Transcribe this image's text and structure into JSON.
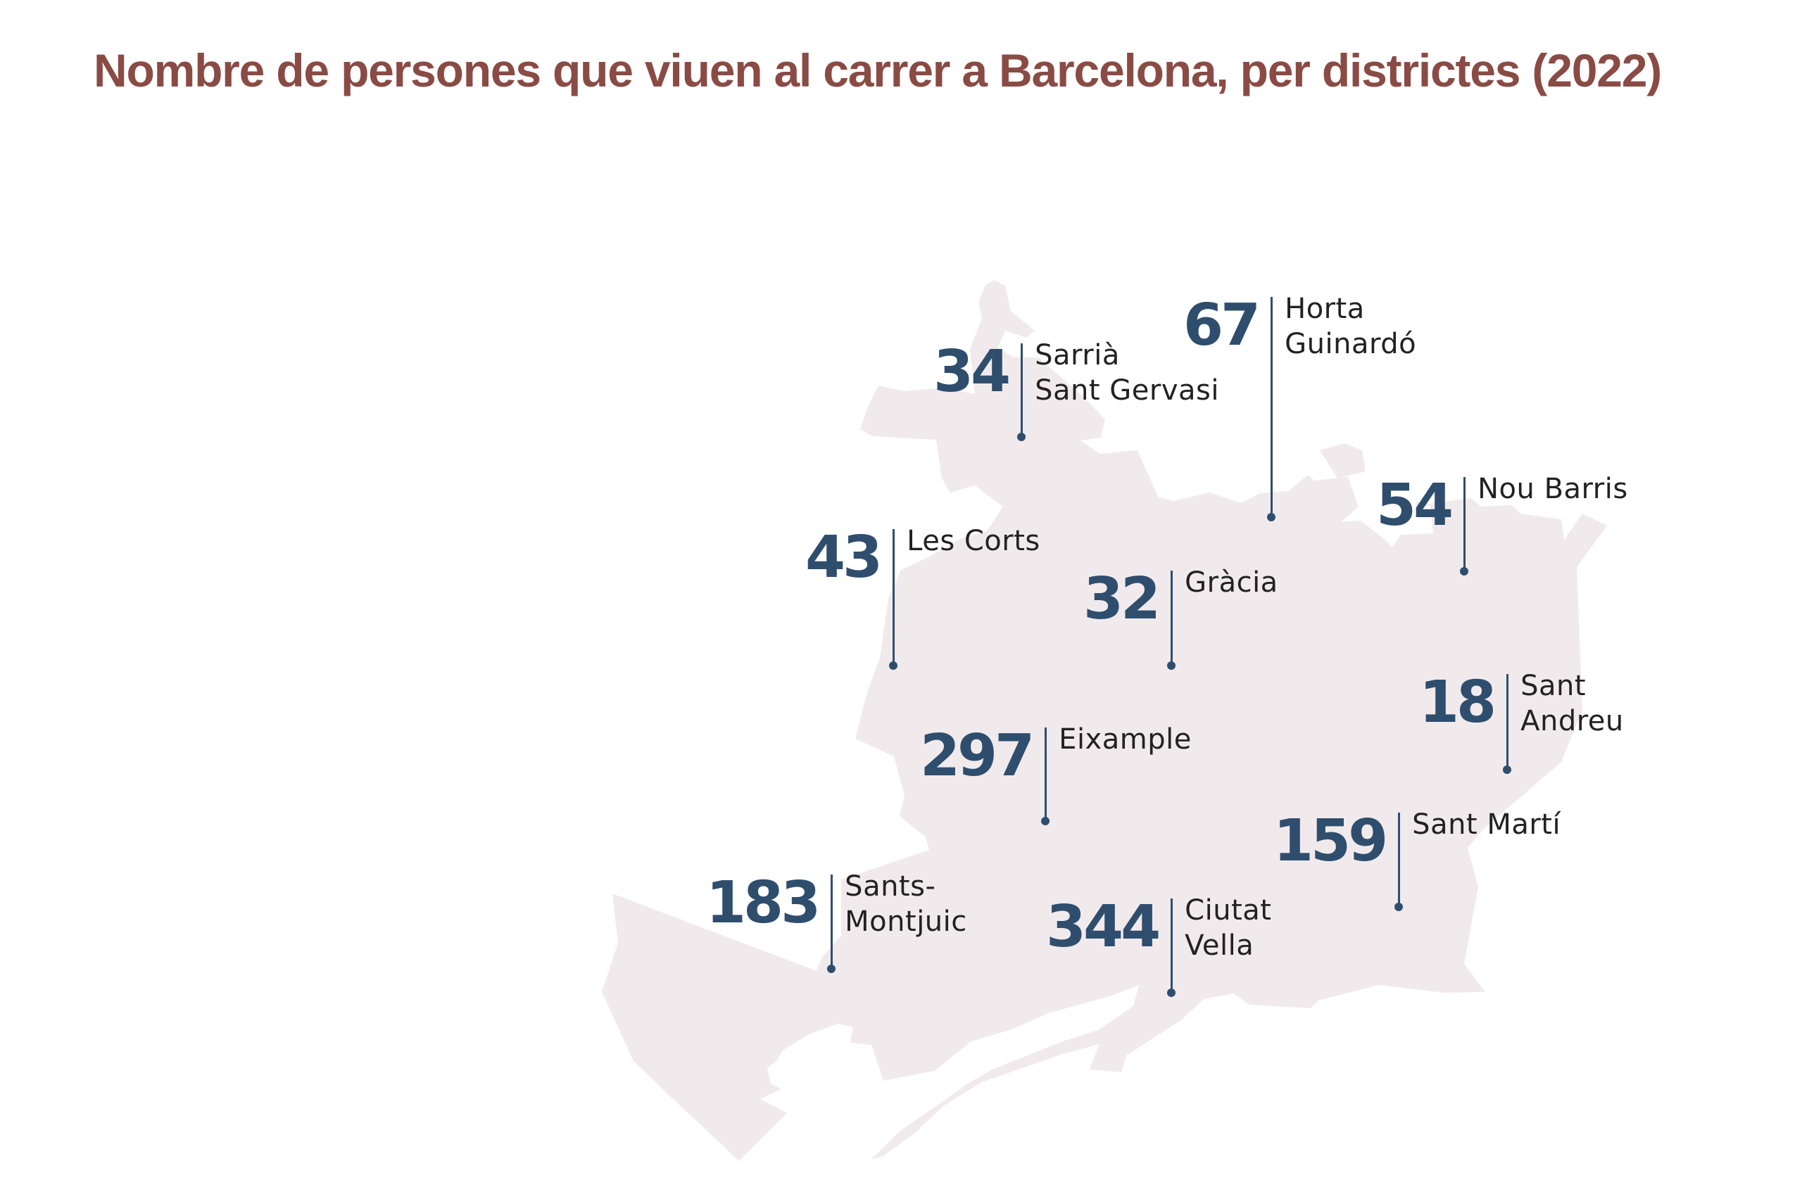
{
  "title": "Nombre de persones que viuen al carrer a Barcelona, per districtes (2022)",
  "colors": {
    "title": "#8a4b45",
    "value": "#2f4e6e",
    "leader_line": "#2f4e6e",
    "district_name": "#222222",
    "map_fill": "#f1eaec",
    "background": "#ffffff"
  },
  "districts": [
    {
      "id": "sarria",
      "value": "34",
      "name_lines": [
        "Sarrià",
        "Sant Gervasi"
      ]
    },
    {
      "id": "horta",
      "value": "67",
      "name_lines": [
        "Horta",
        "Guinardó"
      ]
    },
    {
      "id": "nou-barris",
      "value": "54",
      "name_lines": [
        "Nou Barris",
        ""
      ]
    },
    {
      "id": "les-corts",
      "value": "43",
      "name_lines": [
        "Les Corts",
        ""
      ]
    },
    {
      "id": "gracia",
      "value": "32",
      "name_lines": [
        "Gràcia",
        ""
      ]
    },
    {
      "id": "sant-andreu",
      "value": "18",
      "name_lines": [
        "Sant",
        "Andreu"
      ]
    },
    {
      "id": "eixample",
      "value": "297",
      "name_lines": [
        "Eixample",
        ""
      ]
    },
    {
      "id": "sant-marti",
      "value": "159",
      "name_lines": [
        "Sant Martí",
        ""
      ]
    },
    {
      "id": "sants",
      "value": "183",
      "name_lines": [
        "Sants-",
        "Montjuic"
      ]
    },
    {
      "id": "ciutat-vella",
      "value": "344",
      "name_lines": [
        "Ciutat",
        "Vella"
      ]
    }
  ]
}
